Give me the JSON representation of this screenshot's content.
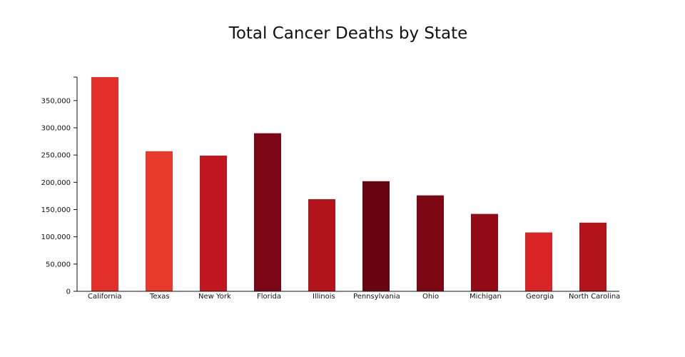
{
  "chart_data": {
    "type": "bar",
    "title": "Total Cancer Deaths by State",
    "xlabel": "",
    "ylabel": "",
    "ylim": [
      0,
      393000
    ],
    "yticks": [
      0,
      50000,
      100000,
      150000,
      200000,
      250000,
      300000,
      350000
    ],
    "ytick_labels": [
      "0",
      "50,000",
      "100,000",
      "150,000",
      "200,000",
      "250,000",
      "300,000",
      "350,000"
    ],
    "grid": false,
    "categories": [
      "California",
      "Texas",
      "New York",
      "Florida",
      "Illinois",
      "Pennsylvania",
      "Ohio",
      "Michigan",
      "Georgia",
      "North Carolina"
    ],
    "values": [
      393000,
      257000,
      249000,
      290000,
      169000,
      202000,
      176000,
      142000,
      108000,
      126000
    ],
    "bar_colors": [
      "#e3302a",
      "#e8392d",
      "#c0171e",
      "#7b0614",
      "#b3141b",
      "#690411",
      "#7d0613",
      "#920b16",
      "#d92525",
      "#b3141b"
    ]
  }
}
